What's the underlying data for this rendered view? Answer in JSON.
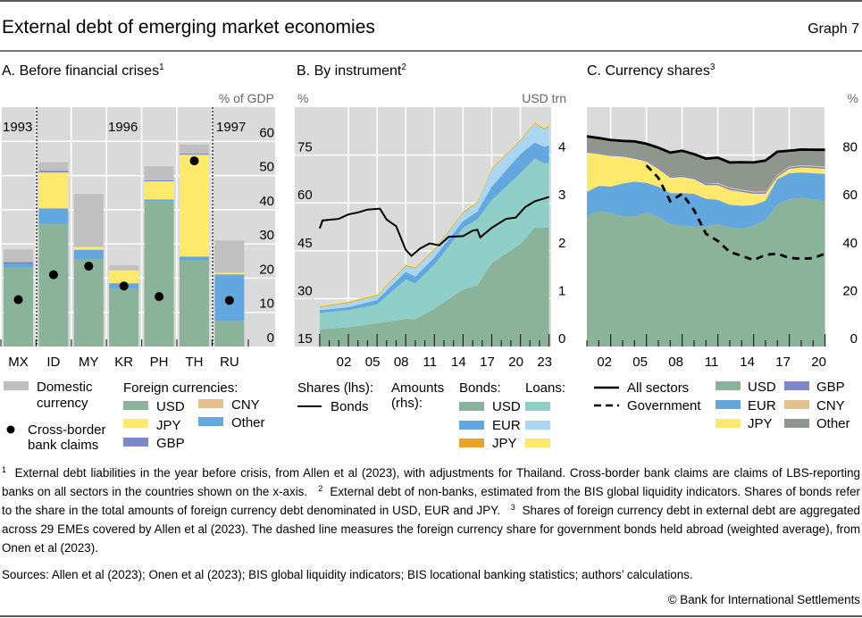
{
  "header": {
    "title": "External debt of emerging market economies",
    "graph_label": "Graph 7"
  },
  "colors": {
    "plot_bg": "#dadada",
    "grid": "#ffffff",
    "usd": "#8ab39a",
    "eur": "#62a8de",
    "jpy": "#fde96c",
    "gbp": "#7e88c8",
    "cny": "#e5c08f",
    "other_a": "#62a8de",
    "other_c": "#8e968e",
    "domestic": "#c0c0c0",
    "loans_usd": "#8fcfc8",
    "loans_eur": "#aad6f2",
    "bonds_jpy": "#e9a22a",
    "loans_jpy": "#fde96c"
  },
  "chart_data": [
    {
      "type": "bar",
      "title": "A. Before financial crises",
      "title_note": "1",
      "unit": "% of GDP",
      "stacked": true,
      "categories": [
        "MX",
        "ID",
        "MY",
        "KR",
        "PH",
        "TH",
        "RU"
      ],
      "period_labels": [
        "1993",
        "1996",
        "1997"
      ],
      "ylim": [
        0,
        70
      ],
      "yticks": [
        0,
        10,
        20,
        30,
        40,
        50,
        60
      ],
      "axis_side": "right",
      "grid": true,
      "series": [
        {
          "name": "USD",
          "color_key": "usd",
          "values": [
            23.1,
            35.9,
            25.5,
            17.0,
            42.4,
            25.2,
            7.5
          ]
        },
        {
          "name": "Other",
          "color_key": "other_a",
          "values": [
            0.9,
            4.5,
            2.8,
            1.5,
            0.6,
            1.1,
            13.6
          ]
        },
        {
          "name": "JPY",
          "color_key": "jpy",
          "values": [
            0,
            10.5,
            0.8,
            3.8,
            5.3,
            29.8,
            0.5
          ]
        },
        {
          "name": "GBP",
          "color_key": "gbp",
          "values": [
            0.7,
            0.5,
            0,
            0,
            0.3,
            0.3,
            0
          ]
        },
        {
          "name": "CNY",
          "color_key": "cny",
          "values": [
            0,
            0,
            0,
            0,
            0,
            0,
            0
          ]
        },
        {
          "name": "Domestic currency",
          "color_key": "domestic",
          "values": [
            3.7,
            2.5,
            15.5,
            1.4,
            4.1,
            2.7,
            9.4
          ]
        }
      ],
      "markers": {
        "name": "Cross-border bank claims",
        "values": [
          13.7,
          21.0,
          23.5,
          17.7,
          14.6,
          54.3,
          13.5
        ]
      },
      "legend": {
        "domestic": [
          "Domestic",
          "currency"
        ],
        "claims": [
          "Cross-border",
          "bank claims"
        ],
        "foreign_heading": "Foreign currencies:",
        "items": [
          "USD",
          "JPY",
          "GBP",
          "CNY",
          "Other"
        ]
      }
    },
    {
      "type": "area",
      "title": "B. By instrument",
      "title_note": "2",
      "unit_left": "%",
      "unit_right": "USD trn",
      "ylim_left": [
        15,
        90
      ],
      "yticks_left": [
        15,
        30,
        45,
        60,
        75
      ],
      "ylim_right": [
        0,
        5
      ],
      "yticks_right": [
        0,
        1,
        2,
        3,
        4
      ],
      "xlim": [
        1999,
        2023
      ],
      "xtick_labels": [
        "02",
        "05",
        "08",
        "11",
        "14",
        "17",
        "20",
        "23"
      ],
      "grid": true,
      "x": [
        1999,
        2002,
        2005,
        2008,
        2009,
        2011,
        2014,
        2015.5,
        2017,
        2020,
        2021.5,
        2022.5,
        2023
      ],
      "stack_series": [
        {
          "group": "Bonds",
          "name": "USD",
          "color_key": "usd",
          "values": [
            0.36,
            0.4,
            0.48,
            0.58,
            0.57,
            0.79,
            1.19,
            1.28,
            1.74,
            2.14,
            2.48,
            2.48,
            2.49
          ]
        },
        {
          "group": "Loans",
          "name": "USD",
          "color_key": "loans_usd",
          "values": [
            0.34,
            0.36,
            0.4,
            0.82,
            0.75,
            0.92,
            1.29,
            1.38,
            1.32,
            1.48,
            1.45,
            1.35,
            1.34
          ]
        },
        {
          "group": "Bonds",
          "name": "EUR",
          "color_key": "eur",
          "values": [
            0.06,
            0.06,
            0.09,
            0.16,
            0.14,
            0.15,
            0.14,
            0.16,
            0.28,
            0.4,
            0.33,
            0.34,
            0.37
          ]
        },
        {
          "group": "Loans",
          "name": "EUR",
          "color_key": "loans_eur",
          "values": [
            0.06,
            0.09,
            0.09,
            0.12,
            0.17,
            0.16,
            0.17,
            0.18,
            0.37,
            0.28,
            0.4,
            0.37,
            0.4
          ]
        },
        {
          "group": "Bonds",
          "name": "JPY",
          "color_key": "bonds_jpy",
          "values": [
            0.02,
            0.02,
            0.02,
            0.02,
            0.02,
            0.02,
            0.02,
            0.02,
            0.02,
            0.02,
            0.02,
            0.02,
            0.02
          ]
        },
        {
          "group": "Loans",
          "name": "JPY",
          "color_key": "loans_jpy",
          "values": [
            0.02,
            0.02,
            0.02,
            0.02,
            0.02,
            0.02,
            0.02,
            0.02,
            0.02,
            0.02,
            0.02,
            0.02,
            0.02
          ]
        }
      ],
      "line_series": {
        "name": "Bonds",
        "axis": "left",
        "x": [
          1999,
          1999.3,
          2001,
          2002,
          2003,
          2004,
          2005.3,
          2006,
          2007,
          2008,
          2008.6,
          2009.5,
          2010.5,
          2011.5,
          2012.5,
          2014,
          2015,
          2015.5,
          2015.8,
          2017,
          2018.5,
          2019.5,
          2020.5,
          2021.5,
          2022.5,
          2023
        ],
        "values": [
          52.0,
          54.5,
          55.0,
          56.4,
          57.0,
          57.9,
          58.2,
          54.8,
          52.7,
          45.3,
          43.4,
          45.7,
          47.3,
          46.7,
          49.4,
          49.6,
          51.3,
          51.6,
          49.2,
          52.2,
          55.0,
          55.4,
          58.7,
          60.5,
          61.4,
          61.9
        ]
      },
      "legend": {
        "shares_heading": "Shares (lhs):",
        "shares_item": "Bonds",
        "amounts_heading": [
          "Amounts",
          "(rhs):"
        ],
        "bonds_heading": "Bonds:",
        "loans_heading": "Loans:",
        "items": [
          "USD",
          "EUR",
          "JPY"
        ]
      }
    },
    {
      "type": "area",
      "title": "C. Currency shares",
      "title_note": "3",
      "unit": "%",
      "ylim": [
        0,
        100
      ],
      "yticks": [
        0,
        20,
        40,
        60,
        80
      ],
      "axis_side": "right",
      "xlim": [
        2000,
        2020
      ],
      "xtick_labels": [
        "02",
        "05",
        "08",
        "11",
        "14",
        "17",
        "20"
      ],
      "grid": true,
      "x": [
        2000,
        2001,
        2002,
        2003,
        2004,
        2005,
        2006,
        2007,
        2008,
        2009,
        2010,
        2011,
        2012,
        2013,
        2014,
        2015,
        2016,
        2017,
        2018,
        2019,
        2020
      ],
      "stack_series": [
        {
          "name": "USD",
          "color_key": "usd",
          "values": [
            54.5,
            56.7,
            55.8,
            54.5,
            54.5,
            56.0,
            54.3,
            51.1,
            50.5,
            50.2,
            50.2,
            51.1,
            49.8,
            49.2,
            50.5,
            52.9,
            59.4,
            61.5,
            62.2,
            61.5,
            60.7
          ]
        },
        {
          "name": "EUR",
          "color_key": "eur",
          "values": [
            10.1,
            10.4,
            11.0,
            13.6,
            14.4,
            12.4,
            12.5,
            13.0,
            13.6,
            13.6,
            11.5,
            10.2,
            9.4,
            9.6,
            8.6,
            8.0,
            10.5,
            10.9,
            10.5,
            10.9,
            11.4
          ]
        },
        {
          "name": "JPY",
          "color_key": "jpy",
          "values": [
            16.4,
            13.3,
            12.8,
            11.3,
            9.6,
            8.9,
            7.4,
            6.4,
            6.7,
            6.1,
            5.7,
            6.1,
            6.2,
            5.8,
            4.7,
            2.9,
            0.9,
            1.8,
            2.1,
            2.2,
            2.1
          ]
        },
        {
          "name": "GBP",
          "color_key": "gbp",
          "values": [
            0.6,
            0.6,
            0.6,
            0.6,
            0.6,
            0.6,
            0.6,
            0.6,
            0.6,
            0.6,
            0.6,
            0.6,
            0.6,
            0.6,
            0.6,
            0.6,
            0.6,
            0.6,
            0.6,
            0.6,
            0.6
          ]
        },
        {
          "name": "CNY",
          "color_key": "cny",
          "values": [
            0,
            0,
            0,
            0,
            0,
            0,
            0,
            0,
            0,
            0,
            0,
            0.4,
            0.4,
            0.4,
            0.4,
            0.4,
            0.4,
            0.4,
            0.4,
            0.4,
            0.4
          ]
        },
        {
          "name": "Other",
          "color_key": "other_c",
          "values": [
            6.2,
            6.1,
            6.1,
            5.9,
            6.6,
            6.8,
            8.3,
            9.9,
            10.4,
            9.9,
            10.5,
            10.5,
            10.5,
            11.4,
            12.1,
            12.9,
            9.6,
            6.6,
            6.5,
            6.6,
            7.0
          ]
        }
      ],
      "lines": [
        {
          "name": "All sectors",
          "style": "solid",
          "x": [
            2000,
            2001,
            2002,
            2003,
            2004,
            2005,
            2006,
            2007,
            2008,
            2009,
            2010,
            2011,
            2012,
            2013,
            2014,
            2015,
            2016,
            2017,
            2018,
            2019,
            2020
          ],
          "values": [
            87.8,
            87.1,
            86.3,
            85.9,
            85.7,
            84.7,
            83.1,
            81.0,
            81.8,
            80.4,
            78.5,
            78.9,
            76.9,
            77.0,
            76.9,
            77.7,
            81.4,
            81.8,
            82.3,
            82.2,
            82.2
          ]
        },
        {
          "name": "Government",
          "style": "dashed",
          "x": [
            2005,
            2006,
            2007,
            2008,
            2009,
            2010,
            2011,
            2012,
            2013,
            2014,
            2015,
            2016,
            2017,
            2018,
            2019,
            2020
          ],
          "values": [
            75.7,
            70.5,
            60.7,
            63.8,
            57.0,
            47.1,
            44.1,
            39.5,
            37.9,
            36.1,
            38.3,
            38.8,
            37.0,
            36.7,
            36.9,
            38.8
          ]
        }
      ],
      "legend": {
        "lines": [
          "All sectors",
          "Government"
        ],
        "items": [
          "USD",
          "EUR",
          "JPY",
          "GBP",
          "CNY",
          "Other"
        ]
      }
    }
  ],
  "footnotes": {
    "n1": "1",
    "t1": "External debt liabilities in the year before crisis, from Allen et al (2023), with adjustments for Thailand. Cross-border bank claims are claims of LBS-reporting banks on all sectors in the countries shown on the x-axis.",
    "n2": "2",
    "t2": "External debt of non-banks, estimated from the BIS global liquidity indicators. Shares of bonds refer to the share in the total amounts of foreign currency debt denominated in USD, EUR and JPY.",
    "n3": "3",
    "t3": "Shares of foreign currency debt in external debt are aggregated across 29 EMEs covered by Allen et al (2023). The dashed line measures the foreign currency share for government bonds held abroad (weighted average), from Onen et al (2023)."
  },
  "sources": "Sources: Allen et al (2023); Onen et al (2023); BIS global liquidity indicators; BIS locational banking statistics; authors’ calculations.",
  "copyright": "© Bank for International Settlements"
}
